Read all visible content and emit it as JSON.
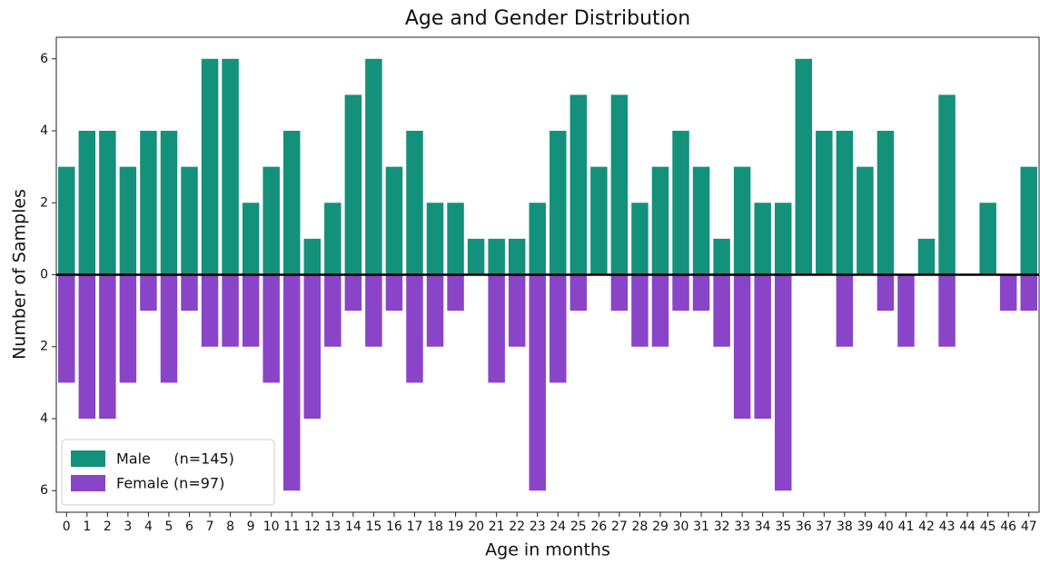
{
  "chart_data": {
    "type": "mirrored-bar",
    "title": "Age and Gender Distribution",
    "x_label": "Age in months",
    "y_label": "Number of Samples",
    "categories": [
      "0",
      "1",
      "2",
      "3",
      "4",
      "5",
      "6",
      "7",
      "8",
      "9",
      "10",
      "11",
      "12",
      "13",
      "14",
      "15",
      "16",
      "17",
      "18",
      "19",
      "20",
      "21",
      "22",
      "23",
      "24",
      "25",
      "26",
      "27",
      "28",
      "29",
      "30",
      "31",
      "32",
      "33",
      "34",
      "35",
      "36",
      "37",
      "38",
      "39",
      "40",
      "41",
      "42",
      "43",
      "44",
      "45",
      "46",
      "47"
    ],
    "series": [
      {
        "name": "Male     (n=145)",
        "color": "#13917a",
        "values": [
          3,
          4,
          4,
          3,
          4,
          4,
          3,
          6,
          6,
          2,
          3,
          4,
          1,
          2,
          5,
          6,
          3,
          4,
          2,
          2,
          1,
          1,
          1,
          2,
          4,
          5,
          3,
          5,
          2,
          3,
          4,
          3,
          1,
          3,
          2,
          2,
          6,
          4,
          4,
          3,
          4,
          0,
          1,
          5,
          0,
          2,
          0,
          3
        ]
      },
      {
        "name": "Female (n=97)",
        "color": "#8a44c8",
        "values": [
          -3,
          -4,
          -4,
          -3,
          -1,
          -3,
          -1,
          -2,
          -2,
          -2,
          -3,
          -6,
          -4,
          -2,
          -1,
          -2,
          -1,
          -3,
          -2,
          -1,
          0,
          -3,
          -2,
          -6,
          -3,
          -1,
          0,
          -1,
          -2,
          -2,
          -1,
          -1,
          -2,
          -4,
          -4,
          -6,
          0,
          0,
          -2,
          0,
          -1,
          -2,
          0,
          -2,
          0,
          0,
          -1,
          -1
        ]
      }
    ],
    "ylim": [
      -6.6,
      6.6
    ],
    "yticks": [
      {
        "value": -6,
        "label": "6"
      },
      {
        "value": -4,
        "label": "4"
      },
      {
        "value": -2,
        "label": "2"
      },
      0,
      2,
      4,
      6
    ],
    "legend": "lower left",
    "grid": false
  }
}
